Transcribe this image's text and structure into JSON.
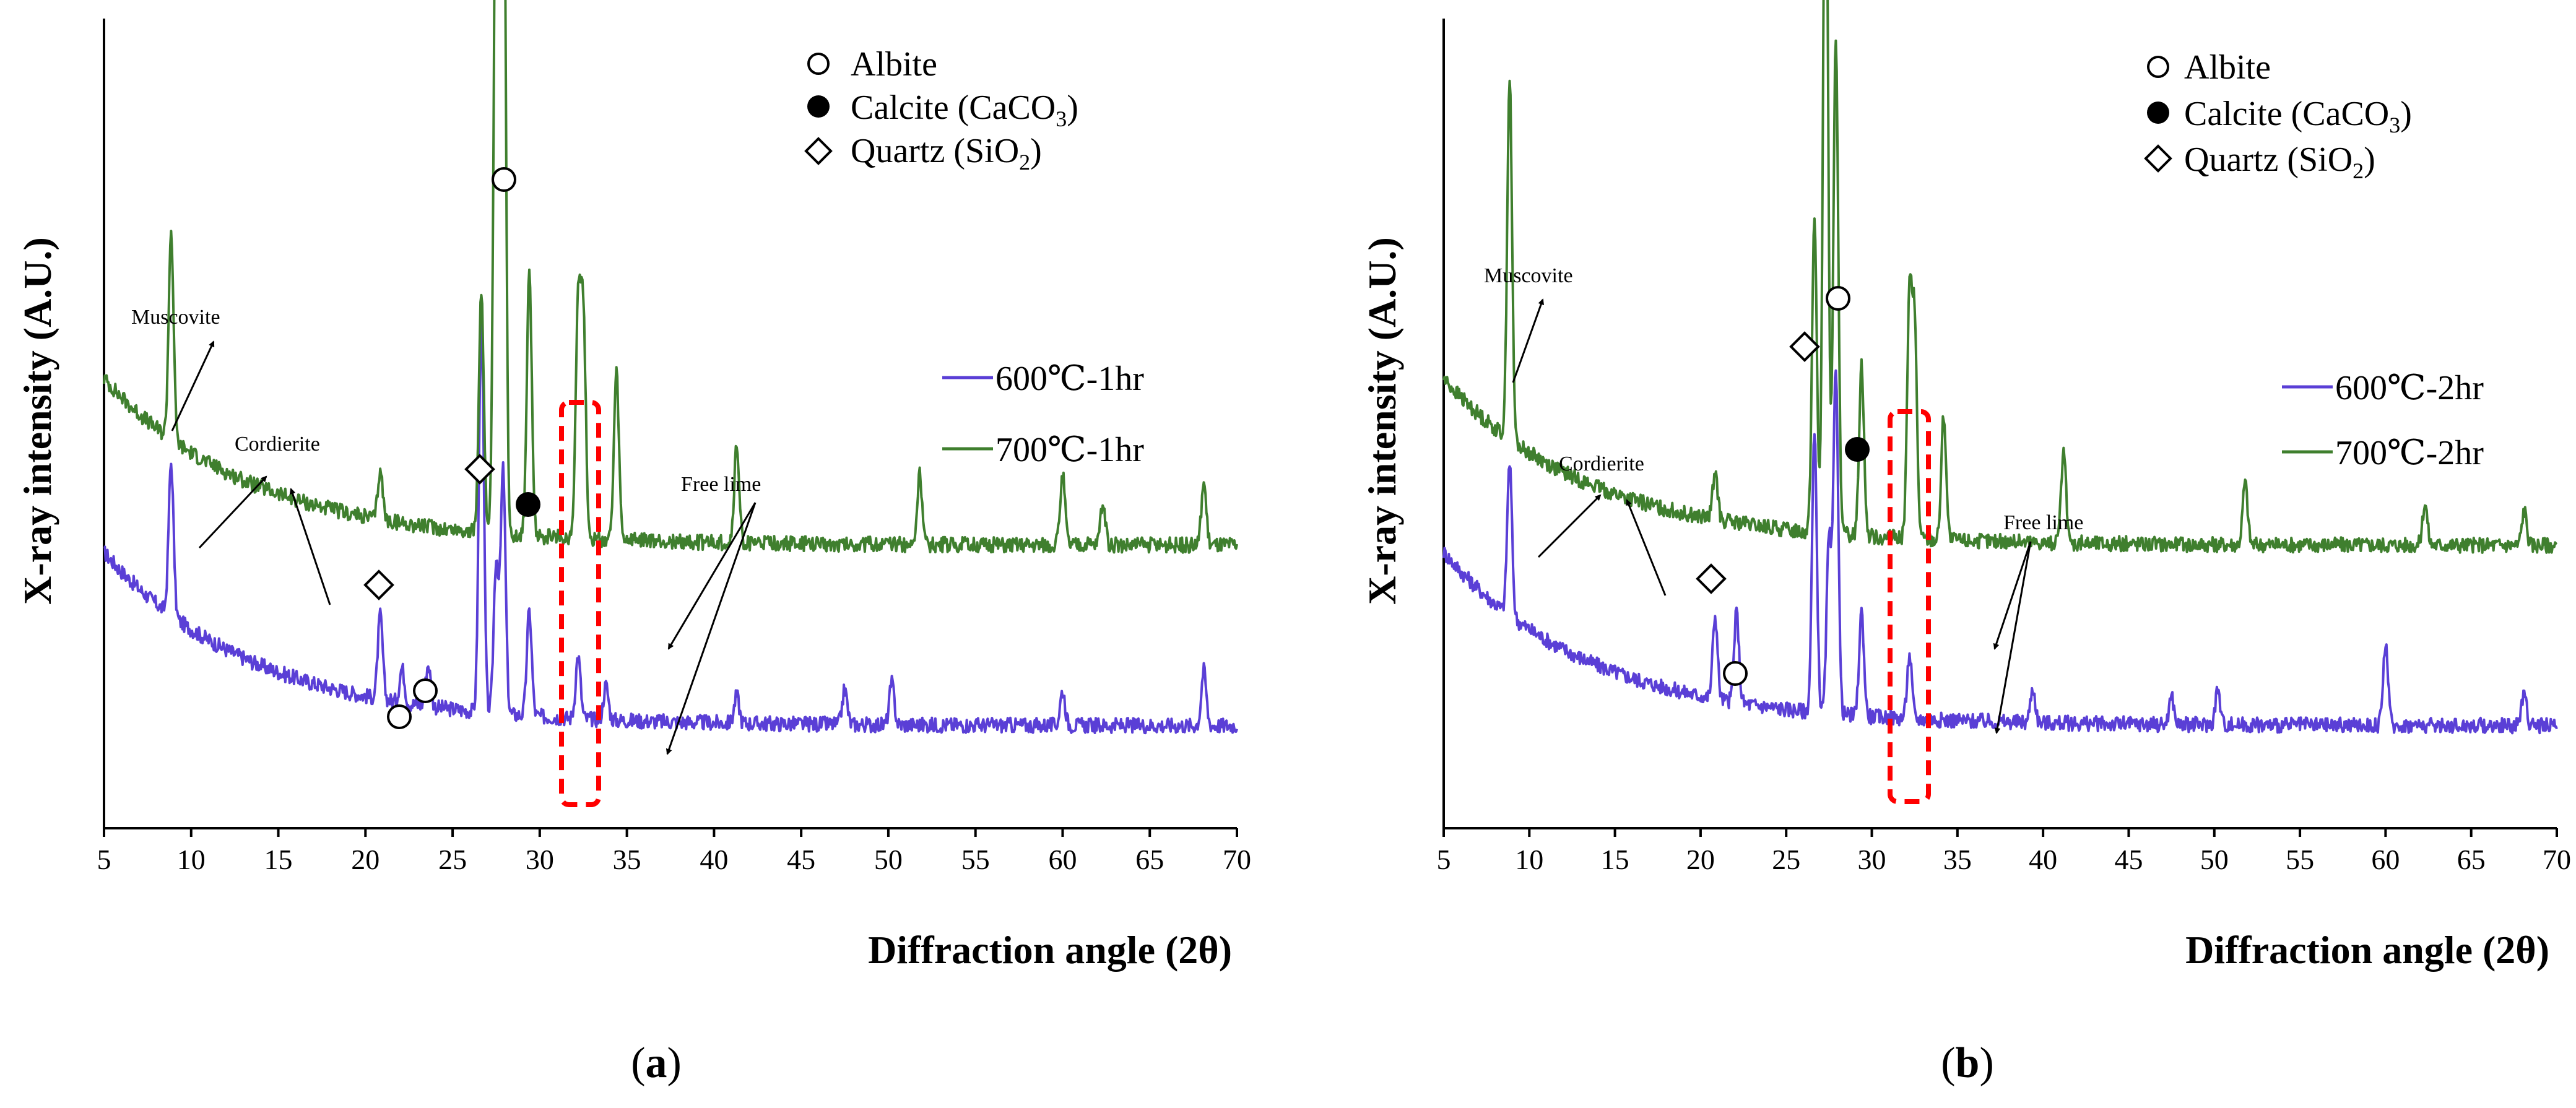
{
  "chart_data": [
    {
      "type": "line",
      "panel_caption": "a",
      "xlabel": "Diffraction angle (2θ)",
      "ylabel": "X-ray intensity (A.U.)",
      "xlim": [
        5,
        70
      ],
      "xticks": [
        "5",
        "10",
        "15",
        "20",
        "25",
        "30",
        "35",
        "40",
        "45",
        "50",
        "55",
        "60",
        "65",
        "70"
      ],
      "y_ticks_shown": false,
      "phase_legend": [
        {
          "marker": "open-circle",
          "text": "Albite"
        },
        {
          "marker": "filled-circle",
          "text": "Calcite (CaCO",
          "sub": "3",
          "tail": ")"
        },
        {
          "marker": "open-diamond",
          "text": "Quartz (SiO",
          "sub": "2",
          "tail": ")"
        }
      ],
      "series": [
        {
          "name": "600℃-1hr",
          "color": "#5a3fd6",
          "baseline": 0.33,
          "start": 0.58,
          "peaks": [
            [
              8.85,
              0.22
            ],
            [
              20.85,
              0.12
            ],
            [
              22.1,
              0.05
            ],
            [
              23.6,
              0.06
            ],
            [
              26.65,
              0.57
            ],
            [
              27.5,
              0.22
            ],
            [
              27.9,
              0.35
            ],
            [
              29.4,
              0.15
            ],
            [
              32.2,
              0.09
            ],
            [
              33.8,
              0.05
            ],
            [
              41.3,
              0.04
            ],
            [
              47.5,
              0.05
            ],
            [
              50.2,
              0.06
            ],
            [
              60.0,
              0.05
            ],
            [
              68.1,
              0.08
            ]
          ]
        },
        {
          "name": "700℃-1hr",
          "color": "#3f7f2e",
          "baseline": 0.59,
          "start": 0.83,
          "peaks": [
            [
              8.85,
              0.3
            ],
            [
              20.85,
              0.07
            ],
            [
              26.65,
              0.35
            ],
            [
              27.5,
              1.02
            ],
            [
              27.9,
              1.2
            ],
            [
              29.4,
              0.38
            ],
            [
              32.2,
              0.34
            ],
            [
              32.5,
              0.32
            ],
            [
              34.4,
              0.24
            ],
            [
              41.3,
              0.14
            ],
            [
              51.8,
              0.1
            ],
            [
              60.0,
              0.1
            ],
            [
              62.3,
              0.06
            ],
            [
              68.1,
              0.09
            ]
          ]
        }
      ],
      "annotations": [
        "Muscovite",
        "Cordierite",
        "Free lime"
      ]
    },
    {
      "type": "line",
      "panel_caption": "b",
      "xlabel": "Diffraction angle (2θ)",
      "ylabel": "X-ray intensity (A.U.)",
      "xlim": [
        5,
        70
      ],
      "xticks": [
        "5",
        "10",
        "15",
        "20",
        "25",
        "30",
        "35",
        "40",
        "45",
        "50",
        "55",
        "60",
        "65",
        "70"
      ],
      "y_ticks_shown": false,
      "phase_legend": [
        {
          "marker": "open-circle",
          "text": "Albite"
        },
        {
          "marker": "filled-circle",
          "text": "Calcite (CaCO",
          "sub": "3",
          "tail": ")"
        },
        {
          "marker": "open-diamond",
          "text": "Quartz (SiO",
          "sub": "2",
          "tail": ")"
        }
      ],
      "series": [
        {
          "name": "600℃-2hr",
          "color": "#5a3fd6",
          "baseline": 0.33,
          "start": 0.58,
          "peaks": [
            [
              8.85,
              0.22
            ],
            [
              20.85,
              0.12
            ],
            [
              22.1,
              0.13
            ],
            [
              26.65,
              0.4
            ],
            [
              27.5,
              0.25
            ],
            [
              27.9,
              0.5
            ],
            [
              29.4,
              0.15
            ],
            [
              32.2,
              0.09
            ],
            [
              39.4,
              0.05
            ],
            [
              47.5,
              0.04
            ],
            [
              50.2,
              0.05
            ],
            [
              60.0,
              0.12
            ],
            [
              68.1,
              0.05
            ]
          ]
        },
        {
          "name": "700℃-2hr",
          "color": "#3f7f2e",
          "baseline": 0.59,
          "start": 0.83,
          "peaks": [
            [
              8.85,
              0.52
            ],
            [
              20.85,
              0.07
            ],
            [
              26.65,
              0.45
            ],
            [
              27.3,
              1.12
            ],
            [
              27.9,
              0.72
            ],
            [
              29.4,
              0.25
            ],
            [
              32.2,
              0.34
            ],
            [
              32.5,
              0.3
            ],
            [
              34.2,
              0.18
            ],
            [
              41.2,
              0.13
            ],
            [
              51.8,
              0.09
            ],
            [
              62.3,
              0.06
            ],
            [
              68.1,
              0.05
            ]
          ]
        }
      ],
      "annotations": [
        "Muscovite",
        "Cordierite",
        "Free lime"
      ]
    }
  ]
}
